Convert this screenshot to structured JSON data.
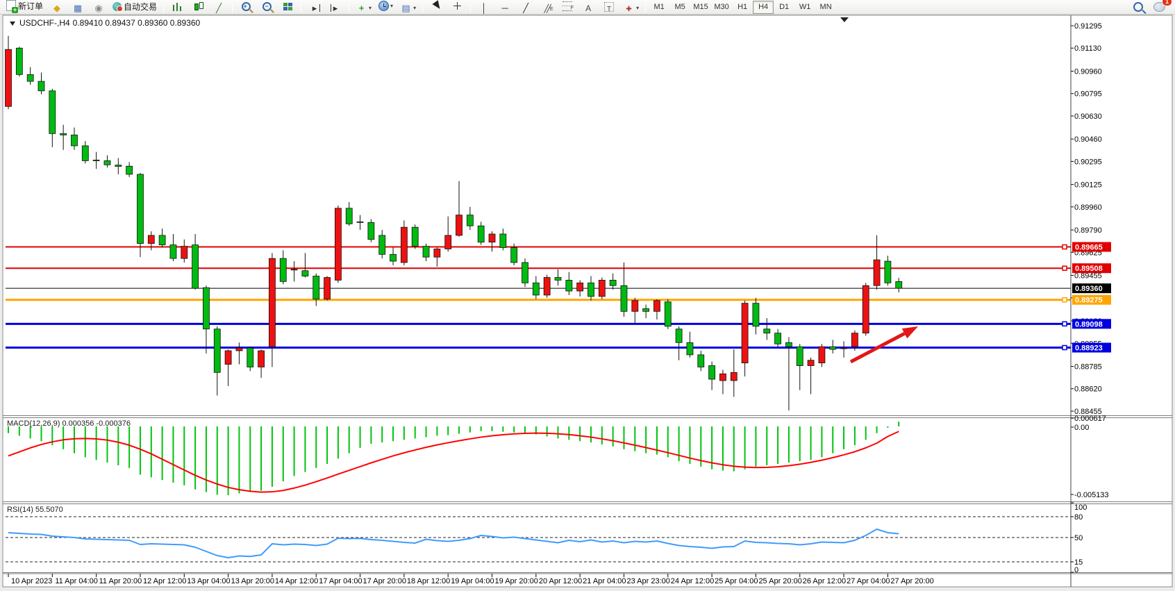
{
  "toolbar": {
    "buttons": [
      {
        "icon": "new-order",
        "label": "新订单"
      },
      {
        "icon": "megaphone"
      },
      {
        "icon": "charts"
      },
      {
        "icon": "signal"
      },
      {
        "icon": "auto-trading",
        "label": "自动交易"
      },
      {
        "sep": true
      },
      {
        "icon": "bar-chart"
      },
      {
        "icon": "candlestick"
      },
      {
        "icon": "line-chart"
      },
      {
        "sep": true
      },
      {
        "icon": "zoom-in"
      },
      {
        "icon": "zoom-out"
      },
      {
        "icon": "tile-windows"
      },
      {
        "sep": true
      },
      {
        "icon": "chart-shift"
      },
      {
        "icon": "auto-scroll"
      },
      {
        "sep": true
      },
      {
        "icon": "indicators",
        "caret": true
      },
      {
        "icon": "periods",
        "caret": true
      },
      {
        "icon": "templates",
        "caret": true
      },
      {
        "sep": true
      },
      {
        "icon": "cursor"
      },
      {
        "icon": "crosshair"
      },
      {
        "sep": true
      },
      {
        "icon": "vertical-line"
      },
      {
        "icon": "horizontal-line"
      },
      {
        "icon": "trendline"
      },
      {
        "icon": "equidistant-channel"
      },
      {
        "icon": "fibonacci"
      },
      {
        "icon": "text"
      },
      {
        "icon": "text-label"
      },
      {
        "icon": "arrows",
        "caret": true
      },
      {
        "sep": true
      }
    ],
    "timeframes": [
      "M1",
      "M5",
      "M15",
      "M30",
      "H1",
      "H4",
      "D1",
      "W1",
      "MN"
    ],
    "active_timeframe": "H4",
    "notifications_badge": "1"
  },
  "chart": {
    "symbol_period": "USDCHF-,H4",
    "ohlc": "0.89410 0.89437 0.89360 0.89360"
  },
  "indicators": {
    "macd_label": "MACD(12,26,9)",
    "macd_values": "0.000356 -0.000376",
    "rsi_label": "RSI(14)",
    "rsi_value": "55.5070"
  },
  "chart_data": {
    "type": "candlestick",
    "symbol": "USDCHF-",
    "timeframe": "H4",
    "current_bar": {
      "open": 0.8941,
      "high": 0.89437,
      "low": 0.8936,
      "close": 0.8936
    },
    "y_axis": {
      "min": 0.88455,
      "max": 0.91295,
      "ticks": [
        "0.91295",
        "0.91130",
        "0.90960",
        "0.90795",
        "0.90630",
        "0.90460",
        "0.90295",
        "0.90125",
        "0.89960",
        "0.89790",
        "0.89625",
        "0.89455",
        "0.89290",
        "0.89120",
        "0.88955",
        "0.88785",
        "0.88620",
        "0.88455"
      ]
    },
    "x_labels": [
      "10 Apr 2023",
      "11 Apr 04:00",
      "11 Apr 20:00",
      "12 Apr 12:00",
      "13 Apr 04:00",
      "13 Apr 20:00",
      "14 Apr 12:00",
      "17 Apr 04:00",
      "17 Apr 20:00",
      "18 Apr 12:00",
      "19 Apr 04:00",
      "19 Apr 20:00",
      "20 Apr 12:00",
      "21 Apr 04:00",
      "23 Apr 23:00",
      "24 Apr 12:00",
      "25 Apr 04:00",
      "25 Apr 20:00",
      "26 Apr 12:00",
      "27 Apr 04:00",
      "27 Apr 20:00"
    ],
    "candles": [
      [
        0.907,
        0.9122,
        0.9068,
        0.9112
      ],
      [
        0.9113,
        0.9114,
        0.9092,
        0.90935
      ],
      [
        0.90935,
        0.9099,
        0.9086,
        0.90885
      ],
      [
        0.90885,
        0.9095,
        0.9079,
        0.90815
      ],
      [
        0.90815,
        0.9083,
        0.904,
        0.905
      ],
      [
        0.905,
        0.90565,
        0.9038,
        0.9049
      ],
      [
        0.9049,
        0.90545,
        0.9038,
        0.9041
      ],
      [
        0.9041,
        0.90445,
        0.9028,
        0.903
      ],
      [
        0.90305,
        0.90365,
        0.9024,
        0.903
      ],
      [
        0.903,
        0.9034,
        0.9025,
        0.9027
      ],
      [
        0.90268,
        0.9032,
        0.902,
        0.90258
      ],
      [
        0.9026,
        0.9029,
        0.9018,
        0.902
      ],
      [
        0.902,
        0.9021,
        0.8959,
        0.8969
      ],
      [
        0.8969,
        0.8978,
        0.8964,
        0.8975
      ],
      [
        0.8975,
        0.898,
        0.8966,
        0.8968
      ],
      [
        0.8968,
        0.8976,
        0.8956,
        0.8958
      ],
      [
        0.8958,
        0.8972,
        0.8955,
        0.8967
      ],
      [
        0.8968,
        0.8976,
        0.8935,
        0.8936
      ],
      [
        0.89365,
        0.8938,
        0.8888,
        0.8906
      ],
      [
        0.8906,
        0.8908,
        0.8857,
        0.8874
      ],
      [
        0.888,
        0.8891,
        0.8864,
        0.889
      ],
      [
        0.889,
        0.8896,
        0.888,
        0.8892
      ],
      [
        0.8892,
        0.8893,
        0.8875,
        0.8878
      ],
      [
        0.8878,
        0.8891,
        0.887,
        0.889
      ],
      [
        0.8893,
        0.8962,
        0.8878,
        0.8958
      ],
      [
        0.8958,
        0.8964,
        0.8939,
        0.8941
      ],
      [
        0.895,
        0.8956,
        0.8941,
        0.89495
      ],
      [
        0.8949,
        0.8962,
        0.8944,
        0.8945
      ],
      [
        0.8945,
        0.8947,
        0.8923,
        0.8928
      ],
      [
        0.8928,
        0.8945,
        0.8927,
        0.8944
      ],
      [
        0.8942,
        0.8997,
        0.894,
        0.8995
      ],
      [
        0.8995,
        0.89995,
        0.8982,
        0.89835
      ],
      [
        0.8985,
        0.899,
        0.8979,
        0.89845
      ],
      [
        0.89845,
        0.8987,
        0.897,
        0.8972
      ],
      [
        0.8975,
        0.8979,
        0.8958,
        0.8961
      ],
      [
        0.8961,
        0.8966,
        0.8953,
        0.8956
      ],
      [
        0.8955,
        0.8986,
        0.8953,
        0.8981
      ],
      [
        0.8981,
        0.8983,
        0.8965,
        0.8967
      ],
      [
        0.8967,
        0.8969,
        0.8956,
        0.8959
      ],
      [
        0.8959,
        0.8966,
        0.8952,
        0.8965
      ],
      [
        0.8965,
        0.8989,
        0.8963,
        0.8975
      ],
      [
        0.8975,
        0.9015,
        0.8974,
        0.899
      ],
      [
        0.899,
        0.8996,
        0.8979,
        0.8982
      ],
      [
        0.8982,
        0.8985,
        0.8968,
        0.897
      ],
      [
        0.897,
        0.8978,
        0.8963,
        0.8976
      ],
      [
        0.8976,
        0.898,
        0.8964,
        0.8966
      ],
      [
        0.8966,
        0.8969,
        0.8953,
        0.8955
      ],
      [
        0.8955,
        0.8958,
        0.8937,
        0.894
      ],
      [
        0.894,
        0.8945,
        0.8928,
        0.8931
      ],
      [
        0.8931,
        0.8946,
        0.8929,
        0.8944
      ],
      [
        0.8944,
        0.895,
        0.8938,
        0.8942
      ],
      [
        0.8942,
        0.8948,
        0.8931,
        0.8934
      ],
      [
        0.8934,
        0.8942,
        0.893,
        0.894
      ],
      [
        0.894,
        0.8945,
        0.8927,
        0.893
      ],
      [
        0.893,
        0.8944,
        0.8928,
        0.8942
      ],
      [
        0.8942,
        0.8947,
        0.8935,
        0.8938
      ],
      [
        0.8938,
        0.8955,
        0.8915,
        0.8919
      ],
      [
        0.8919,
        0.8929,
        0.891,
        0.8927
      ],
      [
        0.8921,
        0.8924,
        0.8914,
        0.8919
      ],
      [
        0.8919,
        0.8928,
        0.8913,
        0.8927
      ],
      [
        0.8926,
        0.8928,
        0.8906,
        0.8908
      ],
      [
        0.8906,
        0.8908,
        0.8883,
        0.8896
      ],
      [
        0.8896,
        0.8904,
        0.8885,
        0.8887
      ],
      [
        0.8887,
        0.889,
        0.8875,
        0.8878
      ],
      [
        0.8879,
        0.8882,
        0.8861,
        0.8869
      ],
      [
        0.8868,
        0.8876,
        0.8858,
        0.8873
      ],
      [
        0.8868,
        0.8891,
        0.8856,
        0.8874
      ],
      [
        0.8881,
        0.8927,
        0.8871,
        0.8925
      ],
      [
        0.8925,
        0.8929,
        0.8902,
        0.8908
      ],
      [
        0.8906,
        0.8914,
        0.8898,
        0.8903
      ],
      [
        0.8903,
        0.8906,
        0.8893,
        0.8895
      ],
      [
        0.8896,
        0.89,
        0.8846,
        0.8893
      ],
      [
        0.8893,
        0.8895,
        0.8861,
        0.8879
      ],
      [
        0.8879,
        0.8885,
        0.8858,
        0.8883
      ],
      [
        0.8881,
        0.8895,
        0.8878,
        0.8893
      ],
      [
        0.8893,
        0.8898,
        0.8888,
        0.8891
      ],
      [
        0.8892,
        0.8897,
        0.8885,
        0.8892
      ],
      [
        0.8893,
        0.8905,
        0.889,
        0.8903
      ],
      [
        0.8903,
        0.894,
        0.8901,
        0.8938
      ],
      [
        0.8938,
        0.8975,
        0.8935,
        0.8957
      ],
      [
        0.8956,
        0.896,
        0.8938,
        0.894
      ],
      [
        0.8941,
        0.89437,
        0.8933,
        0.8936
      ]
    ],
    "hlines": [
      {
        "price": 0.89665,
        "label": "0.89665",
        "color": "#e00000",
        "width": 2
      },
      {
        "price": 0.89508,
        "label": "0.89508",
        "color": "#e00000",
        "width": 2
      },
      {
        "price": 0.8936,
        "label": "0.89360",
        "color": "#000000",
        "width": 1
      },
      {
        "price": 0.89275,
        "label": "0.89275",
        "color": "#ffa500",
        "width": 3
      },
      {
        "price": 0.89098,
        "label": "0.89098",
        "color": "#0000e0",
        "width": 3
      },
      {
        "price": 0.88923,
        "label": "0.88923",
        "color": "#0000e0",
        "width": 3
      }
    ],
    "macd": {
      "params": "12,26,9",
      "value": 0.000356,
      "signal_value": -0.000376,
      "axis_ticks": [
        "0.000617",
        "0.00",
        "-0.005133"
      ],
      "range": [
        -0.005133,
        0.000617
      ],
      "hist": [
        -0.0005,
        -0.0007,
        -0.0009,
        -0.0011,
        -0.0014,
        -0.0017,
        -0.002,
        -0.0023,
        -0.0025,
        -0.0027,
        -0.0029,
        -0.0031,
        -0.0036,
        -0.0038,
        -0.004,
        -0.0042,
        -0.0044,
        -0.0047,
        -0.0049,
        -0.0051,
        -0.00513,
        -0.005,
        -0.0049,
        -0.0048,
        -0.0045,
        -0.0041,
        -0.0037,
        -0.0034,
        -0.0031,
        -0.0028,
        -0.0024,
        -0.002,
        -0.0016,
        -0.0013,
        -0.0012,
        -0.0011,
        -0.001,
        -0.0009,
        -0.0008,
        -0.0007,
        -0.00065,
        -0.00055,
        -0.00045,
        -0.00035,
        -0.00035,
        -0.0004,
        -0.00045,
        -0.0005,
        -0.0006,
        -0.00075,
        -0.0009,
        -0.001,
        -0.0011,
        -0.0012,
        -0.00135,
        -0.0015,
        -0.0017,
        -0.00185,
        -0.002,
        -0.0021,
        -0.0023,
        -0.0026,
        -0.0028,
        -0.003,
        -0.0032,
        -0.0033,
        -0.00335,
        -0.0032,
        -0.003,
        -0.0029,
        -0.0028,
        -0.0027,
        -0.0026,
        -0.0025,
        -0.0023,
        -0.002,
        -0.0017,
        -0.0014,
        -0.001,
        -0.0005,
        -0.0001,
        0.000356
      ],
      "signal": [
        -0.0022,
        -0.0019,
        -0.0016,
        -0.00135,
        -0.00115,
        -0.001,
        -0.00092,
        -0.0009,
        -0.00093,
        -0.00102,
        -0.00118,
        -0.0014,
        -0.0017,
        -0.00205,
        -0.00245,
        -0.00285,
        -0.00325,
        -0.00365,
        -0.004,
        -0.0043,
        -0.00455,
        -0.00472,
        -0.00484,
        -0.0049,
        -0.00488,
        -0.00478,
        -0.0046,
        -0.00438,
        -0.00412,
        -0.00385,
        -0.00356,
        -0.00328,
        -0.003,
        -0.00272,
        -0.00246,
        -0.0022,
        -0.00197,
        -0.00176,
        -0.00156,
        -0.00138,
        -0.00122,
        -0.00107,
        -0.00093,
        -0.0008,
        -0.0007,
        -0.00062,
        -0.00056,
        -0.00052,
        -0.0005,
        -0.00051,
        -0.00055,
        -0.00061,
        -0.0007,
        -0.0008,
        -0.00093,
        -0.00107,
        -0.00123,
        -0.0014,
        -0.00158,
        -0.00177,
        -0.00196,
        -0.00216,
        -0.00236,
        -0.00255,
        -0.00272,
        -0.00286,
        -0.00297,
        -0.00304,
        -0.00307,
        -0.00306,
        -0.00301,
        -0.00293,
        -0.00282,
        -0.00268,
        -0.00252,
        -0.00233,
        -0.00212,
        -0.00189,
        -0.0016,
        -0.00125,
        -0.00075,
        -0.000376
      ]
    },
    "rsi": {
      "period": 14,
      "value": 55.507,
      "axis_ticks": [
        "100",
        "80",
        "50",
        "15",
        "0"
      ],
      "levels": [
        80,
        50,
        15
      ],
      "range": [
        0,
        100
      ],
      "series": [
        57,
        56,
        55,
        54.5,
        52,
        51,
        50,
        48,
        47.5,
        47,
        46.5,
        46,
        40,
        41,
        40.5,
        40,
        39.5,
        36,
        30,
        24,
        21,
        23.5,
        22.8,
        25,
        41,
        39.5,
        40.5,
        40,
        38.5,
        40.5,
        49,
        48.5,
        48.8,
        47,
        46,
        44.5,
        43,
        42,
        47.5,
        45.5,
        44.5,
        46,
        48.5,
        53,
        51.5,
        49.5,
        50.5,
        48.5,
        46.5,
        44.5,
        42.5,
        46,
        44,
        46.5,
        43.5,
        45,
        42.5,
        44.5,
        43.5,
        45,
        41.5,
        38.5,
        37,
        36,
        34.5,
        36.5,
        37,
        45,
        43,
        42.5,
        41.5,
        41,
        39.5,
        41,
        43.5,
        43,
        42.5,
        46,
        53,
        62,
        57,
        55.5
      ]
    },
    "annotation_arrow": {
      "from": [
        1225,
        521
      ],
      "to": [
        1322,
        470
      ],
      "color": "#e01818"
    },
    "colors": {
      "bull": "#ee1111",
      "bear": "#00bb11",
      "wick": "#111111",
      "macd_hist": "#00c40a",
      "macd_signal": "#ff0000",
      "rsi_line": "#3f9bfc",
      "background": "#ffffff",
      "axis_text": "#000000"
    }
  }
}
